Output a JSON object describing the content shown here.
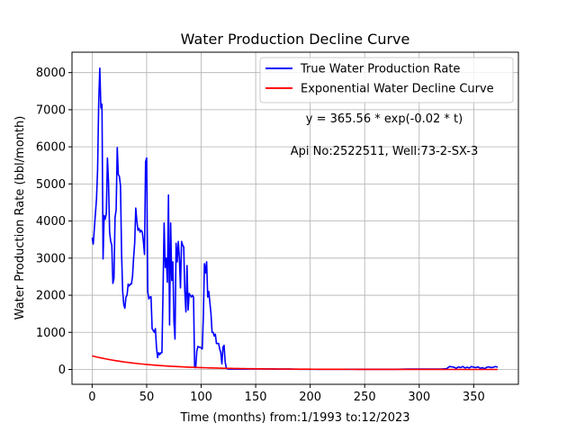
{
  "chart_data": {
    "type": "line",
    "title": "Water Production Decline Curve",
    "xlabel": "Time (months) from:1/1993 to:12/2023",
    "ylabel": "Water Production Rate (bbl/month)",
    "xlim": [
      -18.5,
      391
    ],
    "ylim": [
      -400,
      8550
    ],
    "xticks": [
      0,
      50,
      100,
      150,
      200,
      250,
      300,
      350
    ],
    "yticks": [
      0,
      1000,
      2000,
      3000,
      4000,
      5000,
      6000,
      7000,
      8000
    ],
    "grid": true,
    "legend_position": "top-right",
    "annotations": [
      "y = 365.56 * exp(-0.02 * t)",
      "Api No:2522511, Well:73-2-SX-3"
    ],
    "colors": {
      "true": "#0000ff",
      "fit": "#ff0000"
    },
    "series": [
      {
        "name": "True Water Production Rate",
        "color": "#0000ff",
        "points": [
          [
            0,
            3550
          ],
          [
            1,
            3380
          ],
          [
            2,
            3800
          ],
          [
            3,
            4200
          ],
          [
            4,
            4600
          ],
          [
            5,
            5400
          ],
          [
            6,
            7200
          ],
          [
            7,
            8120
          ],
          [
            8,
            7050
          ],
          [
            9,
            7150
          ],
          [
            10,
            2980
          ],
          [
            11,
            4150
          ],
          [
            12,
            4050
          ],
          [
            13,
            4200
          ],
          [
            14,
            5700
          ],
          [
            15,
            5050
          ],
          [
            16,
            3700
          ],
          [
            17,
            3450
          ],
          [
            18,
            3350
          ],
          [
            19,
            2320
          ],
          [
            20,
            2450
          ],
          [
            21,
            4100
          ],
          [
            22,
            4300
          ],
          [
            23,
            5980
          ],
          [
            24,
            5250
          ],
          [
            25,
            5200
          ],
          [
            26,
            4950
          ],
          [
            27,
            3100
          ],
          [
            28,
            2100
          ],
          [
            29,
            1750
          ],
          [
            30,
            1650
          ],
          [
            31,
            1950
          ],
          [
            32,
            2000
          ],
          [
            33,
            2300
          ],
          [
            34,
            2250
          ],
          [
            35,
            2300
          ],
          [
            36,
            2300
          ],
          [
            37,
            2500
          ],
          [
            38,
            3000
          ],
          [
            39,
            3400
          ],
          [
            40,
            4350
          ],
          [
            41,
            4000
          ],
          [
            42,
            3750
          ],
          [
            43,
            3800
          ],
          [
            44,
            3700
          ],
          [
            45,
            3750
          ],
          [
            46,
            3700
          ],
          [
            47,
            3450
          ],
          [
            48,
            3100
          ],
          [
            49,
            5600
          ],
          [
            50,
            5700
          ],
          [
            51,
            2100
          ],
          [
            52,
            1900
          ],
          [
            53,
            1950
          ],
          [
            54,
            1960
          ],
          [
            55,
            1100
          ],
          [
            56,
            1050
          ],
          [
            57,
            1000
          ],
          [
            58,
            1100
          ],
          [
            59,
            600
          ],
          [
            60,
            320
          ],
          [
            61,
            450
          ],
          [
            62,
            400
          ],
          [
            63,
            450
          ],
          [
            64,
            450
          ],
          [
            65,
            2100
          ],
          [
            66,
            3950
          ],
          [
            67,
            2750
          ],
          [
            68,
            3000
          ],
          [
            69,
            2350
          ],
          [
            70,
            4700
          ],
          [
            71,
            1200
          ],
          [
            72,
            3950
          ],
          [
            73,
            2400
          ],
          [
            74,
            2900
          ],
          [
            75,
            1300
          ],
          [
            76,
            820
          ],
          [
            77,
            3400
          ],
          [
            78,
            2900
          ],
          [
            79,
            3450
          ],
          [
            80,
            3000
          ],
          [
            81,
            2200
          ],
          [
            82,
            3450
          ],
          [
            83,
            3350
          ],
          [
            84,
            3300
          ],
          [
            85,
            2100
          ],
          [
            86,
            1550
          ],
          [
            87,
            2800
          ],
          [
            88,
            1600
          ],
          [
            89,
            2050
          ],
          [
            90,
            2000
          ],
          [
            91,
            1950
          ],
          [
            92,
            2000
          ],
          [
            93,
            1950
          ],
          [
            94,
            50
          ],
          [
            95,
            50
          ],
          [
            96,
            500
          ],
          [
            97,
            620
          ],
          [
            98,
            600
          ],
          [
            99,
            600
          ],
          [
            100,
            580
          ],
          [
            101,
            550
          ],
          [
            102,
            1450
          ],
          [
            103,
            2850
          ],
          [
            104,
            2600
          ],
          [
            105,
            2900
          ],
          [
            106,
            1950
          ],
          [
            107,
            2100
          ],
          [
            108,
            1800
          ],
          [
            109,
            1500
          ],
          [
            110,
            1000
          ],
          [
            111,
            1000
          ],
          [
            112,
            900
          ],
          [
            113,
            950
          ],
          [
            114,
            700
          ],
          [
            115,
            700
          ],
          [
            116,
            700
          ],
          [
            117,
            550
          ],
          [
            118,
            450
          ],
          [
            119,
            150
          ],
          [
            120,
            600
          ],
          [
            121,
            650
          ],
          [
            122,
            200
          ],
          [
            123,
            50
          ],
          [
            124,
            20
          ],
          [
            125,
            10
          ],
          [
            130,
            10
          ],
          [
            140,
            10
          ],
          [
            150,
            15
          ],
          [
            160,
            15
          ],
          [
            170,
            10
          ],
          [
            180,
            10
          ],
          [
            190,
            5
          ],
          [
            200,
            5
          ],
          [
            220,
            5
          ],
          [
            240,
            5
          ],
          [
            260,
            5
          ],
          [
            280,
            5
          ],
          [
            290,
            10
          ],
          [
            300,
            10
          ],
          [
            320,
            10
          ],
          [
            325,
            20
          ],
          [
            328,
            80
          ],
          [
            330,
            70
          ],
          [
            332,
            60
          ],
          [
            334,
            30
          ],
          [
            336,
            70
          ],
          [
            338,
            50
          ],
          [
            340,
            80
          ],
          [
            342,
            40
          ],
          [
            344,
            60
          ],
          [
            346,
            40
          ],
          [
            348,
            80
          ],
          [
            350,
            60
          ],
          [
            352,
            50
          ],
          [
            354,
            70
          ],
          [
            356,
            30
          ],
          [
            358,
            50
          ],
          [
            360,
            20
          ],
          [
            362,
            60
          ],
          [
            364,
            70
          ],
          [
            366,
            50
          ],
          [
            368,
            60
          ],
          [
            370,
            80
          ],
          [
            372,
            60
          ]
        ]
      },
      {
        "name": "Exponential Water Decline Curve",
        "color": "#ff0000",
        "function": {
          "a": 365.56,
          "b": -0.02,
          "t_start": 0,
          "t_end": 372
        }
      }
    ]
  }
}
